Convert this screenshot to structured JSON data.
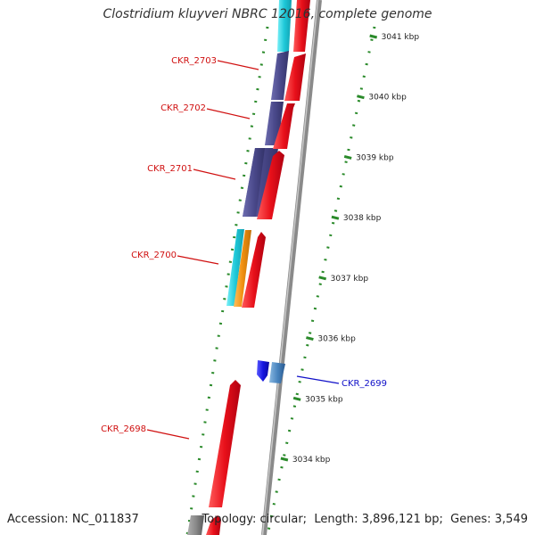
{
  "title": "Clostridium kluyveri NBRC 12016, complete genome",
  "footer": {
    "accession_label": "Accession:",
    "accession": "NC_011837",
    "topology_label": "Topology:",
    "topology": "circular",
    "length_label": "Length:",
    "length": "3,896,121 bp",
    "genes_label": "Genes:",
    "genes": "3,549"
  },
  "ruler": {
    "unit": "kbp",
    "ticks": [
      3034,
      3035,
      3036,
      3037,
      3038,
      3039,
      3040,
      3041
    ]
  },
  "genes": [
    {
      "locus": "CKR_2703",
      "strand": "minus",
      "color": "#4b4a8c"
    },
    {
      "locus": "CKR_2702",
      "strand": "minus",
      "color": "#4b4a8c"
    },
    {
      "locus": "CKR_2701",
      "strand": "minus",
      "color": "#4b4a8c"
    },
    {
      "locus": "CKR_2700",
      "strand": "minus",
      "color": "#1ec8d8"
    },
    {
      "locus": "CKR_2699",
      "strand": "plus",
      "color": "#1515e0"
    },
    {
      "locus": "CKR_2698",
      "strand": "plus",
      "color": "#e0101a"
    }
  ],
  "colors": {
    "cds": "#e0101a",
    "backbone": "#8a8a8a",
    "ruler_dots": "#2a8a2a",
    "label_minus": "#d01010",
    "label_plus": "#1010c8"
  }
}
